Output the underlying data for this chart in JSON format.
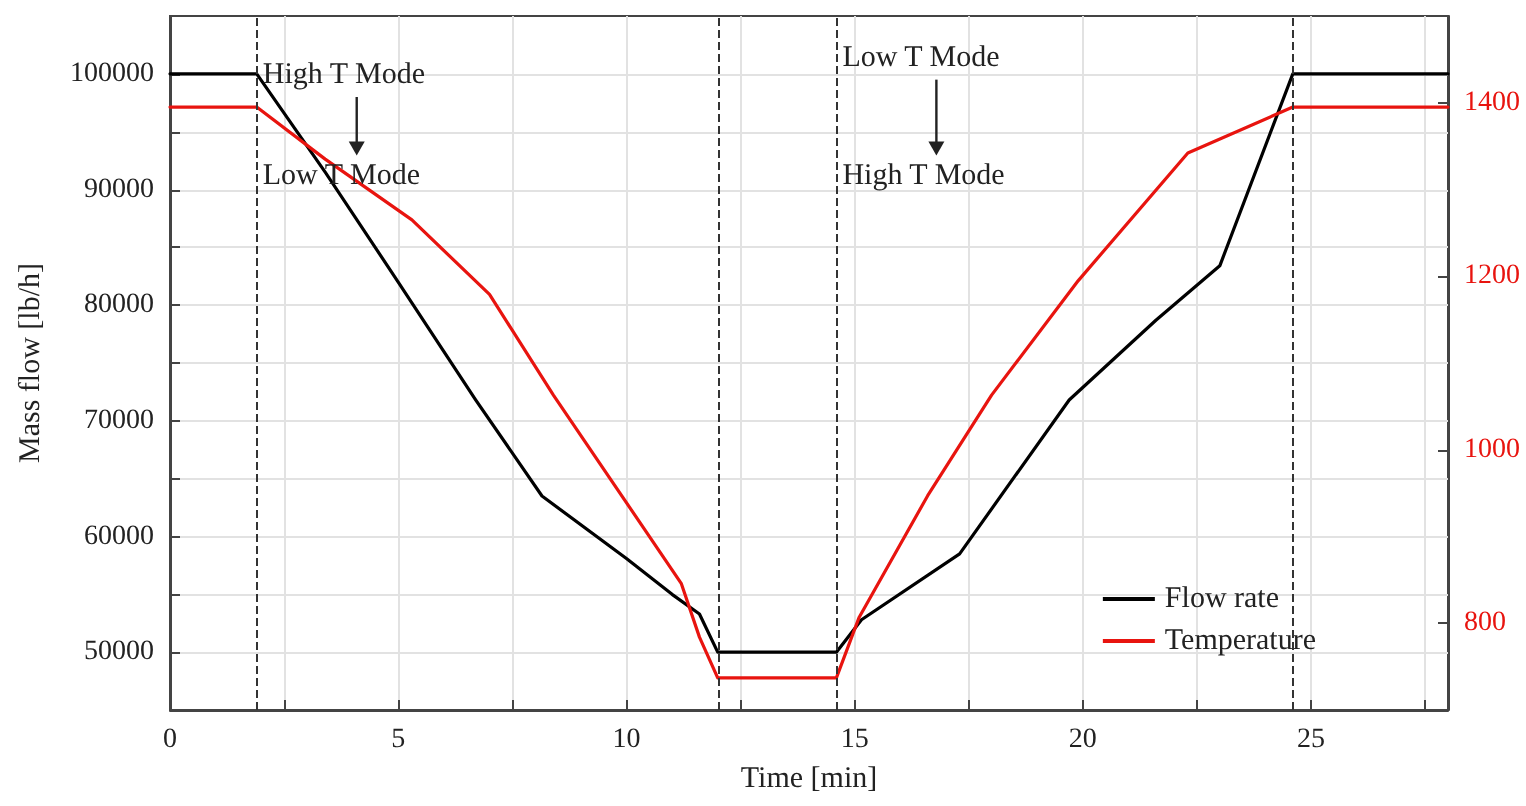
{
  "chart_data": {
    "type": "line",
    "xlabel": "Time [min]",
    "ylabel": "Mass flow [lb/h]",
    "x": [
      0,
      1.9,
      3.4,
      5.0,
      6.7,
      8.15,
      10.0,
      11.0,
      11.6,
      12.0,
      14.6,
      15.15,
      17.3,
      19.7,
      21.6,
      23.0,
      24.6,
      28
    ],
    "series": [
      {
        "name": "Flow rate",
        "color": "#000000",
        "values": [
          100000,
          100000,
          91500,
          82000,
          71800,
          63500,
          58100,
          55000,
          53300,
          50000,
          50000,
          52800,
          58500,
          71800,
          78700,
          83400,
          100000,
          100000
        ]
      },
      {
        "name": "Temperature",
        "color": "#e8140f",
        "axis": "y2",
        "x": [
          0,
          1.9,
          3.4,
          5.3,
          7.0,
          8.4,
          11.2,
          11.6,
          12.0,
          14.6,
          15.1,
          16.6,
          18.0,
          19.9,
          22.3,
          24.6,
          28
        ],
        "values": [
          1395,
          1395,
          1335,
          1265,
          1179,
          1063,
          846,
          784,
          737,
          737,
          807,
          947,
          1063,
          1195,
          1342,
          1395,
          1395
        ]
      }
    ],
    "xlim": [
      0,
      28
    ],
    "xticks": [
      0,
      {
        "value": 2.5,
        "label": null
      },
      5,
      {
        "value": 7.5,
        "label": null
      },
      10,
      {
        "value": 12.5,
        "label": null
      },
      15,
      {
        "value": 17.5,
        "label": null
      },
      20,
      {
        "value": 22.5,
        "label": null
      },
      25,
      {
        "value": 27.5,
        "label": null
      }
    ],
    "ylim": [
      45000,
      105000
    ],
    "yticks": [
      50000,
      {
        "value": 55000,
        "label": null
      },
      60000,
      {
        "value": 65000,
        "label": null
      },
      70000,
      {
        "value": 75000,
        "label": null
      },
      80000,
      {
        "value": 85000,
        "label": null
      },
      90000,
      {
        "value": 95000,
        "label": null
      },
      100000
    ],
    "y2lim": [
      700,
      1500
    ],
    "y2ticks": [
      800,
      1000,
      1200,
      1400
    ],
    "ref_lines": [
      {
        "axis": "x",
        "value": 1.9,
        "color": "#333333",
        "line_style": "dashed"
      },
      {
        "axis": "x",
        "value": 12.0,
        "color": "#333333",
        "line_style": "dashed"
      },
      {
        "axis": "x",
        "value": 14.6,
        "color": "#333333",
        "line_style": "dashed"
      },
      {
        "axis": "x",
        "value": 24.6,
        "color": "#333333",
        "line_style": "dashed"
      }
    ],
    "annotations": [
      "High T Mode",
      "Low T Mode",
      "Low T Mode",
      "High T Mode"
    ],
    "grid": true,
    "legend": "bottom right",
    "marker": "none",
    "line_style": "solid"
  }
}
